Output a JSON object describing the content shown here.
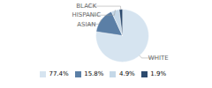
{
  "chart_data": {
    "type": "pie",
    "categories": [
      "WHITE",
      "ASIAN",
      "HISPANIC",
      "BLACK"
    ],
    "values": [
      77.4,
      15.8,
      4.9,
      1.9
    ],
    "value_labels": [
      "77.4%",
      "15.8%",
      "4.9%",
      "1.9%"
    ],
    "colors": [
      "#d6e4f0",
      "#5b7fa6",
      "#c5d8e8",
      "#2c4a6e"
    ],
    "legend": "bottom"
  }
}
